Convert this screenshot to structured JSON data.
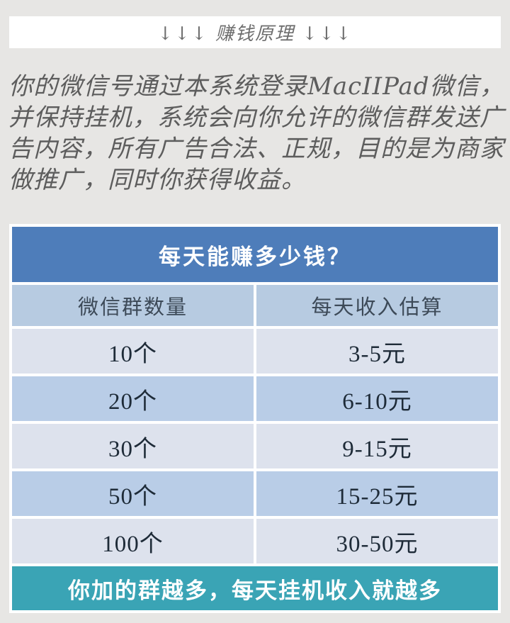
{
  "banner": {
    "title": "↓↓↓ 赚钱原理 ↓↓↓"
  },
  "intro": {
    "text": "你的微信号通过本系统登录MacIIPad微信，并保持挂机，系统会向你允许的微信群发送广告内容，所有广告合法、正规，目的是为商家做推广，同时你获得收益。"
  },
  "table": {
    "title": "每天能赚多少钱？",
    "columns": [
      "微信群数量",
      "每天收入估算"
    ],
    "rows": [
      [
        "10个",
        "3-5元"
      ],
      [
        "20个",
        "6-10元"
      ],
      [
        "30个",
        "9-15元"
      ],
      [
        "50个",
        "15-25元"
      ],
      [
        "100个",
        "30-50元"
      ]
    ],
    "footer": "你加的群越多，每天挂机收入就越多",
    "colors": {
      "title_bg": "#4e7dba",
      "header_bg": "#b7cbe1",
      "row_light": "#dde2ed",
      "row_blue": "#b9cde7",
      "footer_bg": "#3aa4b5",
      "page_bg": "#e7e6e4"
    }
  }
}
